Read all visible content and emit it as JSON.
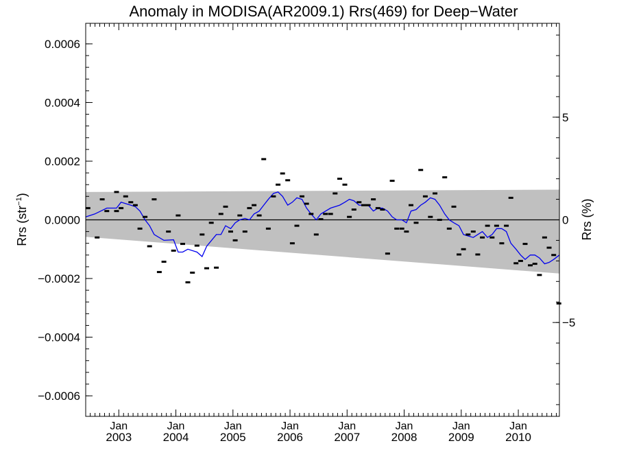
{
  "chart_data": {
    "type": "scatter",
    "title": "Anomaly in MODISA(AR2009.1) Rrs(469) for Deep−Water",
    "ylabel_main": "Rrs (str",
    "ylabel_sup": "−1",
    "ylabel_close": ")",
    "ylabel_right": "Rrs (%)",
    "xlim": [
      2002.42,
      2010.72
    ],
    "ylim": [
      -0.00067,
      0.00067
    ],
    "y_ticks": [
      {
        "value": 0.0006,
        "label": "0.0006"
      },
      {
        "value": 0.0004,
        "label": "0.0004"
      },
      {
        "value": 0.0002,
        "label": "0.0002"
      },
      {
        "value": 0.0,
        "label": "0.0000"
      },
      {
        "value": -0.0002,
        "label": "−0.0002"
      },
      {
        "value": -0.0004,
        "label": "−0.0004"
      },
      {
        "value": -0.0006,
        "label": "−0.0006"
      }
    ],
    "right_ticks": [
      {
        "value": 0.00035,
        "label": "5"
      },
      {
        "value": 0.0,
        "label": "0"
      },
      {
        "value": -0.00035,
        "label": "−5"
      }
    ],
    "x_ticks": [
      {
        "value": 2003.0,
        "month": "Jan",
        "year": "2003"
      },
      {
        "value": 2004.0,
        "month": "Jan",
        "year": "2004"
      },
      {
        "value": 2005.0,
        "month": "Jan",
        "year": "2005"
      },
      {
        "value": 2006.0,
        "month": "Jan",
        "year": "2006"
      },
      {
        "value": 2007.0,
        "month": "Jan",
        "year": "2007"
      },
      {
        "value": 2008.0,
        "month": "Jan",
        "year": "2008"
      },
      {
        "value": 2009.0,
        "month": "Jan",
        "year": "2009"
      },
      {
        "value": 2010.0,
        "month": "Jan",
        "year": "2010"
      }
    ],
    "band": {
      "color": "#c0c0c0",
      "upper": [
        [
          2002.42,
          9.5e-05
        ],
        [
          2010.72,
          0.000103
        ]
      ],
      "lower": [
        [
          2002.42,
          -5.8e-05
        ],
        [
          2010.72,
          -0.000183
        ]
      ]
    },
    "points": [
      [
        2002.46,
        4e-05
      ],
      [
        2002.62,
        -6e-05
      ],
      [
        2002.71,
        7e-05
      ],
      [
        2002.79,
        3e-05
      ],
      [
        2002.96,
        3e-05
      ],
      [
        2002.96,
        9.5e-05
      ],
      [
        2003.04,
        4e-05
      ],
      [
        2003.12,
        8e-05
      ],
      [
        2003.21,
        6e-05
      ],
      [
        2003.29,
        5e-05
      ],
      [
        2003.37,
        -3e-05
      ],
      [
        2003.46,
        1e-05
      ],
      [
        2003.54,
        -9e-05
      ],
      [
        2003.62,
        7e-05
      ],
      [
        2003.71,
        -0.000178
      ],
      [
        2003.79,
        -0.000143
      ],
      [
        2003.87,
        -4e-05
      ],
      [
        2003.96,
        -0.000105
      ],
      [
        2004.04,
        1.5e-05
      ],
      [
        2004.12,
        -8.2e-05
      ],
      [
        2004.21,
        -0.000213
      ],
      [
        2004.29,
        -0.00018
      ],
      [
        2004.37,
        -8.8e-05
      ],
      [
        2004.46,
        -5e-05
      ],
      [
        2004.54,
        -0.000165
      ],
      [
        2004.62,
        -1e-05
      ],
      [
        2004.71,
        -0.000163
      ],
      [
        2004.79,
        2e-05
      ],
      [
        2004.87,
        4.5e-05
      ],
      [
        2004.96,
        -4e-05
      ],
      [
        2005.04,
        -7e-05
      ],
      [
        2005.12,
        1.5e-05
      ],
      [
        2005.21,
        -4e-05
      ],
      [
        2005.29,
        4e-05
      ],
      [
        2005.37,
        5e-05
      ],
      [
        2005.46,
        1.5e-05
      ],
      [
        2005.54,
        0.000207
      ],
      [
        2005.62,
        -3e-05
      ],
      [
        2005.71,
        8e-05
      ],
      [
        2005.79,
        0.00012
      ],
      [
        2005.87,
        0.000158
      ],
      [
        2005.96,
        0.000135
      ],
      [
        2006.04,
        -8e-05
      ],
      [
        2006.12,
        -2e-05
      ],
      [
        2006.21,
        8e-05
      ],
      [
        2006.29,
        5.5e-05
      ],
      [
        2006.37,
        2e-05
      ],
      [
        2006.46,
        -5e-05
      ],
      [
        2006.54,
        2e-06
      ],
      [
        2006.62,
        2e-05
      ],
      [
        2006.71,
        2e-05
      ],
      [
        2006.79,
        9e-05
      ],
      [
        2006.87,
        0.00014
      ],
      [
        2006.96,
        0.00012
      ],
      [
        2007.04,
        1e-05
      ],
      [
        2007.12,
        3.5e-05
      ],
      [
        2007.21,
        6e-05
      ],
      [
        2007.29,
        5e-05
      ],
      [
        2007.37,
        5e-05
      ],
      [
        2007.46,
        7e-05
      ],
      [
        2007.54,
        4e-05
      ],
      [
        2007.62,
        3.5e-05
      ],
      [
        2007.71,
        -0.000115
      ],
      [
        2007.79,
        0.000133
      ],
      [
        2007.87,
        -3e-05
      ],
      [
        2007.96,
        -3e-05
      ],
      [
        2008.04,
        -4e-05
      ],
      [
        2008.12,
        5e-05
      ],
      [
        2008.21,
        -1e-05
      ],
      [
        2008.29,
        0.00017
      ],
      [
        2008.37,
        8e-05
      ],
      [
        2008.46,
        1e-05
      ],
      [
        2008.54,
        9e-05
      ],
      [
        2008.62,
        0.0
      ],
      [
        2008.71,
        0.000145
      ],
      [
        2008.79,
        -3e-05
      ],
      [
        2008.87,
        4.5e-05
      ],
      [
        2008.96,
        -0.000118
      ],
      [
        2009.04,
        -0.0001
      ],
      [
        2009.12,
        -5e-05
      ],
      [
        2009.21,
        -4e-05
      ],
      [
        2009.29,
        -0.000118
      ],
      [
        2009.37,
        -6e-05
      ],
      [
        2009.46,
        -2e-05
      ],
      [
        2009.54,
        -6e-05
      ],
      [
        2009.62,
        -2e-05
      ],
      [
        2009.71,
        -8e-05
      ],
      [
        2009.79,
        -2e-05
      ],
      [
        2009.87,
        7.5e-05
      ],
      [
        2009.96,
        -0.000148
      ],
      [
        2010.04,
        -0.00014
      ],
      [
        2010.12,
        -8.2e-05
      ],
      [
        2010.21,
        -0.000155
      ],
      [
        2010.29,
        -0.00015
      ],
      [
        2010.37,
        -0.000188
      ],
      [
        2010.46,
        -6e-05
      ],
      [
        2010.54,
        -9.5e-05
      ],
      [
        2010.62,
        -0.00012
      ],
      [
        2010.71,
        -0.000285
      ]
    ],
    "line": [
      [
        2002.42,
        1e-05
      ],
      [
        2002.58,
        2e-05
      ],
      [
        2002.79,
        4e-05
      ],
      [
        2002.96,
        4e-05
      ],
      [
        2003.04,
        6e-05
      ],
      [
        2003.21,
        5e-05
      ],
      [
        2003.29,
        4.5e-05
      ],
      [
        2003.37,
        3e-05
      ],
      [
        2003.46,
        0.0
      ],
      [
        2003.54,
        -2e-05
      ],
      [
        2003.62,
        -5e-05
      ],
      [
        2003.79,
        -7e-05
      ],
      [
        2003.96,
        -6.8e-05
      ],
      [
        2004.04,
        -0.00011
      ],
      [
        2004.12,
        -0.00011
      ],
      [
        2004.21,
        -0.0001
      ],
      [
        2004.37,
        -0.00011
      ],
      [
        2004.46,
        -0.000125
      ],
      [
        2004.54,
        -9e-05
      ],
      [
        2004.71,
        -5e-05
      ],
      [
        2004.79,
        -5e-05
      ],
      [
        2004.87,
        -2e-05
      ],
      [
        2004.96,
        -3e-05
      ],
      [
        2005.04,
        -1e-05
      ],
      [
        2005.12,
        0.0
      ],
      [
        2005.21,
        5e-06
      ],
      [
        2005.29,
        0.0
      ],
      [
        2005.37,
        2e-05
      ],
      [
        2005.46,
        3e-05
      ],
      [
        2005.54,
        5e-05
      ],
      [
        2005.62,
        7e-05
      ],
      [
        2005.71,
        9e-05
      ],
      [
        2005.79,
        9.5e-05
      ],
      [
        2005.87,
        8e-05
      ],
      [
        2005.96,
        5e-05
      ],
      [
        2006.04,
        6e-05
      ],
      [
        2006.12,
        7.5e-05
      ],
      [
        2006.21,
        7e-05
      ],
      [
        2006.29,
        4e-05
      ],
      [
        2006.37,
        2e-05
      ],
      [
        2006.46,
        0.0
      ],
      [
        2006.54,
        2e-05
      ],
      [
        2006.71,
        4e-05
      ],
      [
        2006.87,
        5e-05
      ],
      [
        2006.96,
        6e-05
      ],
      [
        2007.04,
        7e-05
      ],
      [
        2007.12,
        6.5e-05
      ],
      [
        2007.21,
        5e-05
      ],
      [
        2007.37,
        5e-05
      ],
      [
        2007.46,
        3e-05
      ],
      [
        2007.54,
        4e-05
      ],
      [
        2007.62,
        4e-05
      ],
      [
        2007.71,
        3e-05
      ],
      [
        2007.79,
        1e-05
      ],
      [
        2007.87,
        0.0
      ],
      [
        2007.96,
        0.0
      ],
      [
        2008.04,
        -1e-05
      ],
      [
        2008.12,
        3e-05
      ],
      [
        2008.21,
        3.5e-05
      ],
      [
        2008.29,
        5e-05
      ],
      [
        2008.37,
        6e-05
      ],
      [
        2008.46,
        7.5e-05
      ],
      [
        2008.54,
        7e-05
      ],
      [
        2008.62,
        5e-05
      ],
      [
        2008.71,
        2e-05
      ],
      [
        2008.79,
        0.0
      ],
      [
        2008.87,
        -1e-05
      ],
      [
        2008.96,
        -2e-05
      ],
      [
        2009.04,
        -5e-05
      ],
      [
        2009.12,
        -5.5e-05
      ],
      [
        2009.21,
        -6e-05
      ],
      [
        2009.29,
        -5e-05
      ],
      [
        2009.37,
        -4e-05
      ],
      [
        2009.46,
        -6e-05
      ],
      [
        2009.54,
        -5e-05
      ],
      [
        2009.62,
        -3e-05
      ],
      [
        2009.71,
        -3e-05
      ],
      [
        2009.79,
        -4e-05
      ],
      [
        2009.87,
        -8e-05
      ],
      [
        2009.96,
        -0.0001
      ],
      [
        2010.04,
        -0.00012
      ],
      [
        2010.12,
        -0.000135
      ],
      [
        2010.21,
        -0.00012
      ],
      [
        2010.29,
        -0.00012
      ],
      [
        2010.37,
        -0.00013
      ],
      [
        2010.46,
        -0.00015
      ],
      [
        2010.54,
        -0.000145
      ],
      [
        2010.62,
        -0.000135
      ],
      [
        2010.72,
        -0.00012
      ]
    ],
    "line_color": "#0000ee",
    "marker_color": "#000000",
    "grid": false,
    "legend": "none"
  }
}
